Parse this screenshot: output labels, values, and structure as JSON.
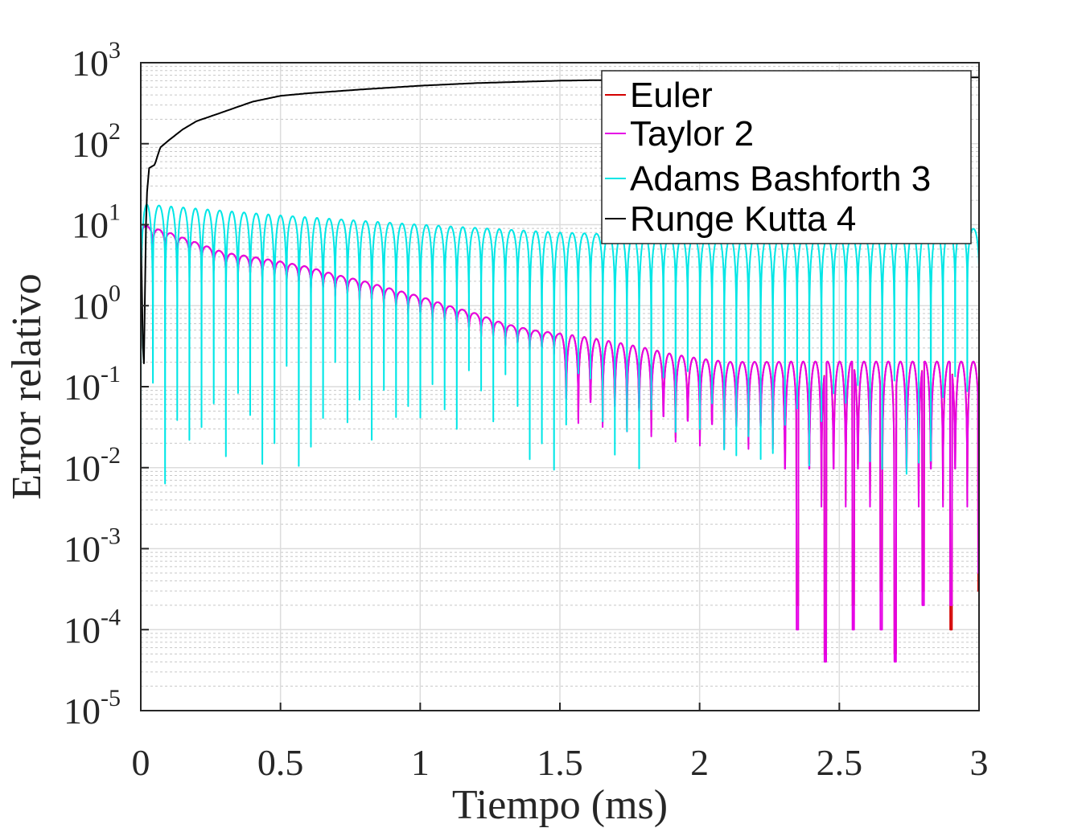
{
  "chart_data": {
    "type": "line",
    "xlabel": "Tiempo (ms)",
    "ylabel": "Error relativo",
    "xlim": [
      0,
      3
    ],
    "ylim": [
      1e-05,
      1000
    ],
    "yscale": "log",
    "grid": true,
    "minor_grid": true,
    "legend_position": "top-right",
    "x_ticks": [
      0,
      0.5,
      1,
      1.5,
      2,
      2.5,
      3
    ],
    "x_tick_labels": [
      "0",
      "0.5",
      "1",
      "1.5",
      "2",
      "2.5",
      "3"
    ],
    "y_ticks": [
      {
        "value": 1e-05,
        "base": "10",
        "exp": "-5"
      },
      {
        "value": 0.0001,
        "base": "10",
        "exp": "-4"
      },
      {
        "value": 0.001,
        "base": "10",
        "exp": "-3"
      },
      {
        "value": 0.01,
        "base": "10",
        "exp": "-2"
      },
      {
        "value": 0.1,
        "base": "10",
        "exp": "-1"
      },
      {
        "value": 1,
        "base": "10",
        "exp": "0"
      },
      {
        "value": 10,
        "base": "10",
        "exp": "1"
      },
      {
        "value": 100,
        "base": "10",
        "exp": "2"
      },
      {
        "value": 1000,
        "base": "10",
        "exp": "3"
      }
    ],
    "series": [
      {
        "name": "Euler",
        "color": "#d40000",
        "x": [
          0,
          0.05,
          0.1,
          0.2,
          0.3,
          0.4,
          0.5,
          0.6,
          0.7,
          0.8,
          0.9,
          1.0,
          1.1,
          1.2,
          1.3,
          1.4,
          1.5,
          1.6,
          1.7,
          1.8,
          1.9,
          2.0,
          2.1,
          2.2,
          2.3,
          2.35,
          2.4,
          2.45,
          2.5,
          2.55,
          2.6,
          2.65,
          2.7,
          2.75,
          2.8,
          2.85,
          2.9,
          2.95,
          3.0
        ],
        "y": [
          10,
          9,
          8,
          6,
          4.5,
          4,
          3.5,
          3,
          2.4,
          2,
          1.6,
          1.3,
          1.0,
          0.8,
          0.6,
          0.5,
          0.45,
          0.4,
          0.35,
          0.3,
          0.25,
          0.22,
          0.2,
          0.2,
          0.2,
          0.0002,
          0.2,
          5e-05,
          0.2,
          0.0002,
          0.2,
          0.0003,
          5e-05,
          0.2,
          0.0003,
          0.2,
          0.0001,
          0.2,
          0.0003
        ]
      },
      {
        "name": "Taylor 2",
        "color": "#e600e6",
        "x": [
          0,
          0.05,
          0.1,
          0.2,
          0.3,
          0.4,
          0.5,
          0.6,
          0.7,
          0.8,
          0.9,
          1.0,
          1.1,
          1.2,
          1.3,
          1.4,
          1.5,
          1.6,
          1.7,
          1.8,
          1.9,
          2.0,
          2.1,
          2.2,
          2.3,
          2.35,
          2.4,
          2.45,
          2.5,
          2.55,
          2.6,
          2.65,
          2.7,
          2.75,
          2.8,
          2.85,
          2.9,
          2.95,
          3.0
        ],
        "y": [
          10,
          9,
          8,
          6,
          4.5,
          4,
          3.5,
          3,
          2.4,
          2,
          1.6,
          1.3,
          1.0,
          0.8,
          0.6,
          0.5,
          0.45,
          0.4,
          0.35,
          0.3,
          0.25,
          0.22,
          0.2,
          0.2,
          0.2,
          0.0001,
          0.2,
          4e-05,
          0.2,
          0.0001,
          0.2,
          0.0001,
          4e-05,
          0.2,
          0.0002,
          0.2,
          0.0002,
          0.2,
          0.0005
        ]
      },
      {
        "name": "Adams Bashforth 3",
        "color": "#00e6e6",
        "x": [
          0,
          0.5,
          1.0,
          1.5,
          2.0,
          2.5,
          3.0
        ],
        "y_max": [
          18,
          13,
          10,
          8,
          7,
          7,
          9
        ],
        "y_min": [
          0.004,
          0.01,
          0.005,
          0.004,
          0.01,
          0.005,
          0.01
        ]
      },
      {
        "name": "Runge Kutta 4",
        "color": "#000000",
        "x": [
          0,
          0.01,
          0.02,
          0.03,
          0.05,
          0.07,
          0.1,
          0.15,
          0.2,
          0.3,
          0.4,
          0.5,
          0.6,
          0.8,
          1.0,
          1.2,
          1.5,
          1.8,
          2.0,
          2.5,
          3.0
        ],
        "y": [
          10,
          0.1,
          20,
          50,
          55,
          90,
          110,
          150,
          190,
          250,
          330,
          390,
          420,
          470,
          520,
          560,
          600,
          620,
          640,
          650,
          660
        ]
      }
    ]
  }
}
